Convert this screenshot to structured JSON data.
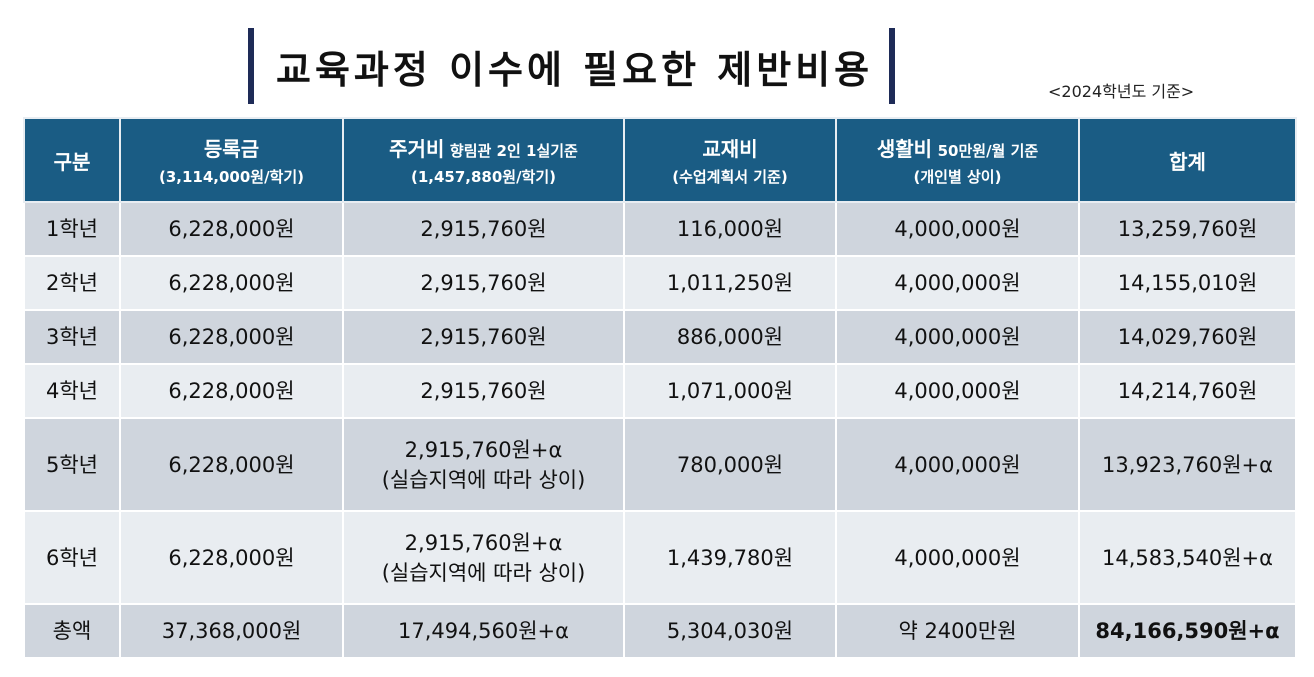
{
  "title": "교육과정 이수에 필요한 제반비용",
  "basis": "<2024학년도 기준>",
  "headers": {
    "category": "구분",
    "tuition": {
      "main": "등록금",
      "sub": "(3,114,000원/학기)"
    },
    "housing": {
      "main": "주거비",
      "note": "향림관 2인 1실기준",
      "sub": "(1,457,880원/학기)"
    },
    "textbook": {
      "main": "교재비",
      "sub": "(수업계획서 기준)"
    },
    "living": {
      "main": "생활비",
      "note": "50만원/월 기준",
      "sub": "(개인별 상이)"
    },
    "total": "합계"
  },
  "rows": [
    {
      "grade": "1학년",
      "tuition": "6,228,000원",
      "housing": "2,915,760원",
      "housing_note": "",
      "textbook": "116,000원",
      "living": "4,000,000원",
      "total": "13,259,760원"
    },
    {
      "grade": "2학년",
      "tuition": "6,228,000원",
      "housing": "2,915,760원",
      "housing_note": "",
      "textbook": "1,011,250원",
      "living": "4,000,000원",
      "total": "14,155,010원"
    },
    {
      "grade": "3학년",
      "tuition": "6,228,000원",
      "housing": "2,915,760원",
      "housing_note": "",
      "textbook": "886,000원",
      "living": "4,000,000원",
      "total": "14,029,760원"
    },
    {
      "grade": "4학년",
      "tuition": "6,228,000원",
      "housing": "2,915,760원",
      "housing_note": "",
      "textbook": "1,071,000원",
      "living": "4,000,000원",
      "total": "14,214,760원"
    },
    {
      "grade": "5학년",
      "tuition": "6,228,000원",
      "housing": "2,915,760원+α",
      "housing_note": "(실습지역에 따라 상이)",
      "textbook": "780,000원",
      "living": "4,000,000원",
      "total": "13,923,760원+α"
    },
    {
      "grade": "6학년",
      "tuition": "6,228,000원",
      "housing": "2,915,760원+α",
      "housing_note": "(실습지역에 따라 상이)",
      "textbook": "1,439,780원",
      "living": "4,000,000원",
      "total": "14,583,540원+α"
    }
  ],
  "summary": {
    "grade": "총액",
    "tuition": "37,368,000원",
    "housing": "17,494,560원+α",
    "textbook": "5,304,030원",
    "living": "약 2400만원",
    "total": "84,166,590원+α"
  }
}
